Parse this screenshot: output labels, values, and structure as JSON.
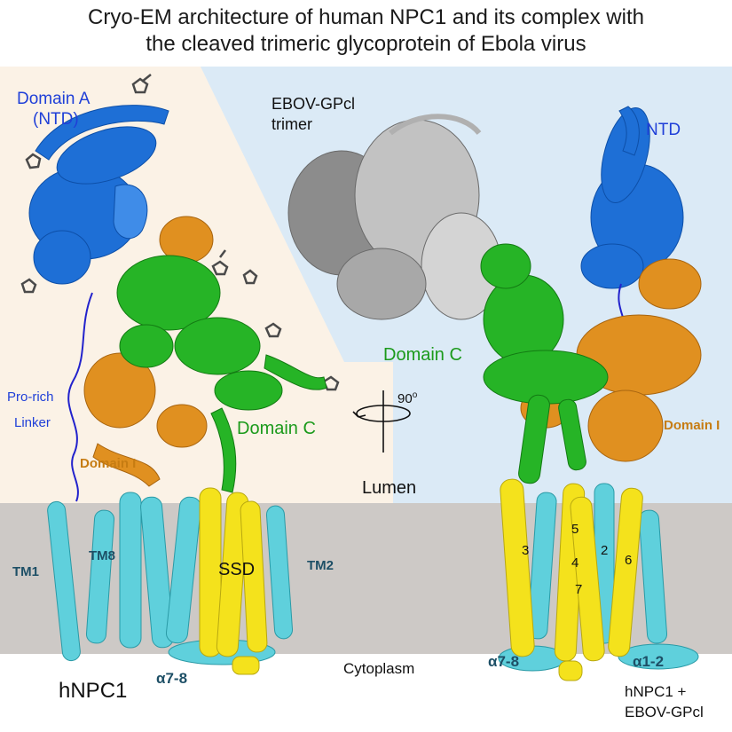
{
  "title_line1": "Cryo-EM architecture of human NPC1 and its complex with",
  "title_line2": "the cleaved trimeric glycoprotein of Ebola virus",
  "colors": {
    "ntd_blue": "#1e6fd6",
    "domain_c_green": "#26b426",
    "domain_i_orange": "#e09020",
    "tm_cyan": "#5fd0dc",
    "ssd_yellow": "#f4e21c",
    "gp_gray": "#9a9a9a",
    "linker_blue": "#2222cc",
    "glycan_dark": "#4a4a4a",
    "lumen_beige": "#fbf2e6",
    "lumen_blue": "#dbeaf6",
    "membrane_gray": "#cdc9c6"
  },
  "left_panel": {
    "domain_a": "Domain A",
    "ntd_paren": "(NTD)",
    "linker_line1": "Pro-rich",
    "linker_line2": "Linker",
    "domain_c": "Domain C",
    "domain_i": "Domain I",
    "tm1": "TM1",
    "tm8": "TM8",
    "ssd": "SSD",
    "tm2": "TM2",
    "alpha78": "α7-8",
    "caption": "hNPC1"
  },
  "center": {
    "gp_line1": "EBOV-GPcl",
    "gp_line2": "trimer",
    "rotation": "90",
    "degree": "o",
    "lumen": "Lumen",
    "cytoplasm": "Cytoplasm"
  },
  "right_panel": {
    "ntd": "NTD",
    "domain_c": "Domain C",
    "domain_i": "Domain I",
    "h3": "3",
    "h5": "5",
    "h4": "4",
    "h2": "2",
    "h6": "6",
    "h7": "7",
    "alpha78": "α7-8",
    "alpha12": "α1-2",
    "caption_line1": "hNPC1 +",
    "caption_line2": "EBOV-GPcl"
  }
}
